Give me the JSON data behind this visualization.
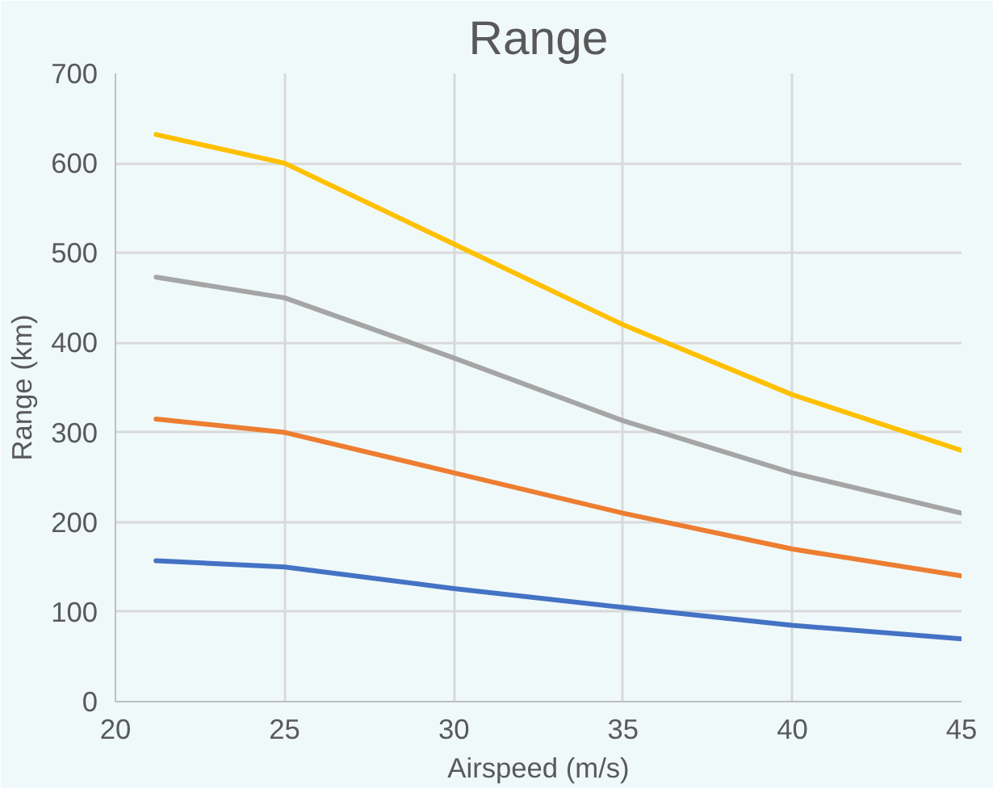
{
  "chart_data": {
    "type": "line",
    "title": "Range",
    "xlabel": "Airspeed (m/s)",
    "ylabel": "Range (km)",
    "x": [
      21.2,
      25,
      30,
      35,
      40,
      45
    ],
    "series": [
      {
        "color": "#4472c4",
        "values": [
          157,
          150,
          126,
          105,
          85,
          70
        ]
      },
      {
        "color": "#ed7d31",
        "values": [
          315,
          300,
          255,
          210,
          170,
          140
        ]
      },
      {
        "color": "#a5a5a5",
        "values": [
          473,
          450,
          383,
          313,
          255,
          210
        ]
      },
      {
        "color": "#ffc000",
        "values": [
          632,
          600,
          510,
          420,
          342,
          280
        ]
      }
    ],
    "xlim": [
      20,
      45
    ],
    "ylim": [
      0,
      700
    ],
    "xticks": [
      20,
      25,
      30,
      35,
      40,
      45
    ],
    "yticks": [
      0,
      100,
      200,
      300,
      400,
      500,
      600,
      700
    ],
    "grid": true
  }
}
